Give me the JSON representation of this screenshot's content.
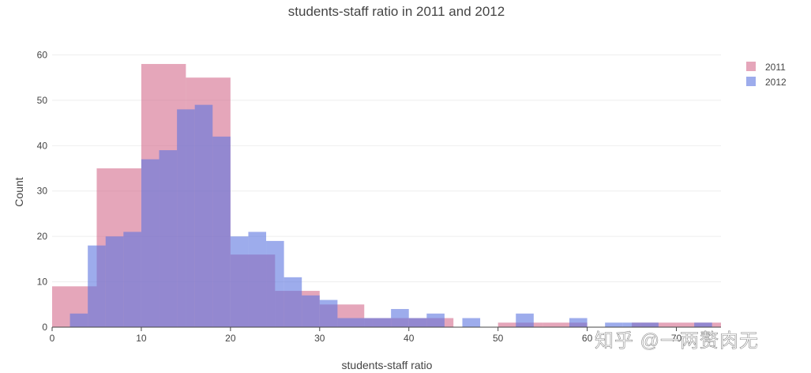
{
  "chart_data": {
    "type": "bar",
    "title": "students-staff ratio in 2011 and 2012",
    "xlabel": "students-staff ratio",
    "ylabel": "Count",
    "xlim": [
      0,
      75
    ],
    "ylim": [
      0,
      62
    ],
    "xticks": [
      0,
      10,
      20,
      30,
      40,
      50,
      60,
      70
    ],
    "yticks": [
      0,
      10,
      20,
      30,
      40,
      50,
      60
    ],
    "grid": true,
    "legend_position": "top-right",
    "series": [
      {
        "name": "2011",
        "color": "#d36b8c",
        "bins": [
          {
            "x0": 0,
            "x1": 5,
            "count": 9
          },
          {
            "x0": 5,
            "x1": 10,
            "count": 35
          },
          {
            "x0": 10,
            "x1": 15,
            "count": 58
          },
          {
            "x0": 15,
            "x1": 20,
            "count": 55
          },
          {
            "x0": 20,
            "x1": 25,
            "count": 16
          },
          {
            "x0": 25,
            "x1": 30,
            "count": 8
          },
          {
            "x0": 30,
            "x1": 35,
            "count": 5
          },
          {
            "x0": 35,
            "x1": 40,
            "count": 2
          },
          {
            "x0": 40,
            "x1": 45,
            "count": 2
          },
          {
            "x0": 45,
            "x1": 50,
            "count": 0
          },
          {
            "x0": 50,
            "x1": 55,
            "count": 1
          },
          {
            "x0": 55,
            "x1": 60,
            "count": 1
          },
          {
            "x0": 60,
            "x1": 65,
            "count": 0
          },
          {
            "x0": 65,
            "x1": 70,
            "count": 1
          },
          {
            "x0": 70,
            "x1": 75,
            "count": 1
          }
        ]
      },
      {
        "name": "2012",
        "color": "#5b74e0",
        "bins": [
          {
            "x0": 2,
            "x1": 4,
            "count": 3
          },
          {
            "x0": 4,
            "x1": 6,
            "count": 18
          },
          {
            "x0": 6,
            "x1": 8,
            "count": 20
          },
          {
            "x0": 8,
            "x1": 10,
            "count": 21
          },
          {
            "x0": 10,
            "x1": 12,
            "count": 37
          },
          {
            "x0": 12,
            "x1": 14,
            "count": 39
          },
          {
            "x0": 14,
            "x1": 16,
            "count": 48
          },
          {
            "x0": 16,
            "x1": 18,
            "count": 49
          },
          {
            "x0": 18,
            "x1": 20,
            "count": 42
          },
          {
            "x0": 20,
            "x1": 22,
            "count": 20
          },
          {
            "x0": 22,
            "x1": 24,
            "count": 21
          },
          {
            "x0": 24,
            "x1": 26,
            "count": 19
          },
          {
            "x0": 26,
            "x1": 28,
            "count": 11
          },
          {
            "x0": 28,
            "x1": 30,
            "count": 7
          },
          {
            "x0": 30,
            "x1": 32,
            "count": 6
          },
          {
            "x0": 32,
            "x1": 34,
            "count": 2
          },
          {
            "x0": 34,
            "x1": 36,
            "count": 2
          },
          {
            "x0": 36,
            "x1": 38,
            "count": 2
          },
          {
            "x0": 38,
            "x1": 40,
            "count": 4
          },
          {
            "x0": 40,
            "x1": 42,
            "count": 2
          },
          {
            "x0": 42,
            "x1": 44,
            "count": 3
          },
          {
            "x0": 46,
            "x1": 48,
            "count": 2
          },
          {
            "x0": 52,
            "x1": 54,
            "count": 3
          },
          {
            "x0": 58,
            "x1": 60,
            "count": 2
          },
          {
            "x0": 62,
            "x1": 64,
            "count": 1
          },
          {
            "x0": 64,
            "x1": 66,
            "count": 1
          },
          {
            "x0": 66,
            "x1": 68,
            "count": 1
          },
          {
            "x0": 72,
            "x1": 74,
            "count": 1
          }
        ]
      }
    ]
  },
  "watermark": "知乎 @一两赘肉无"
}
